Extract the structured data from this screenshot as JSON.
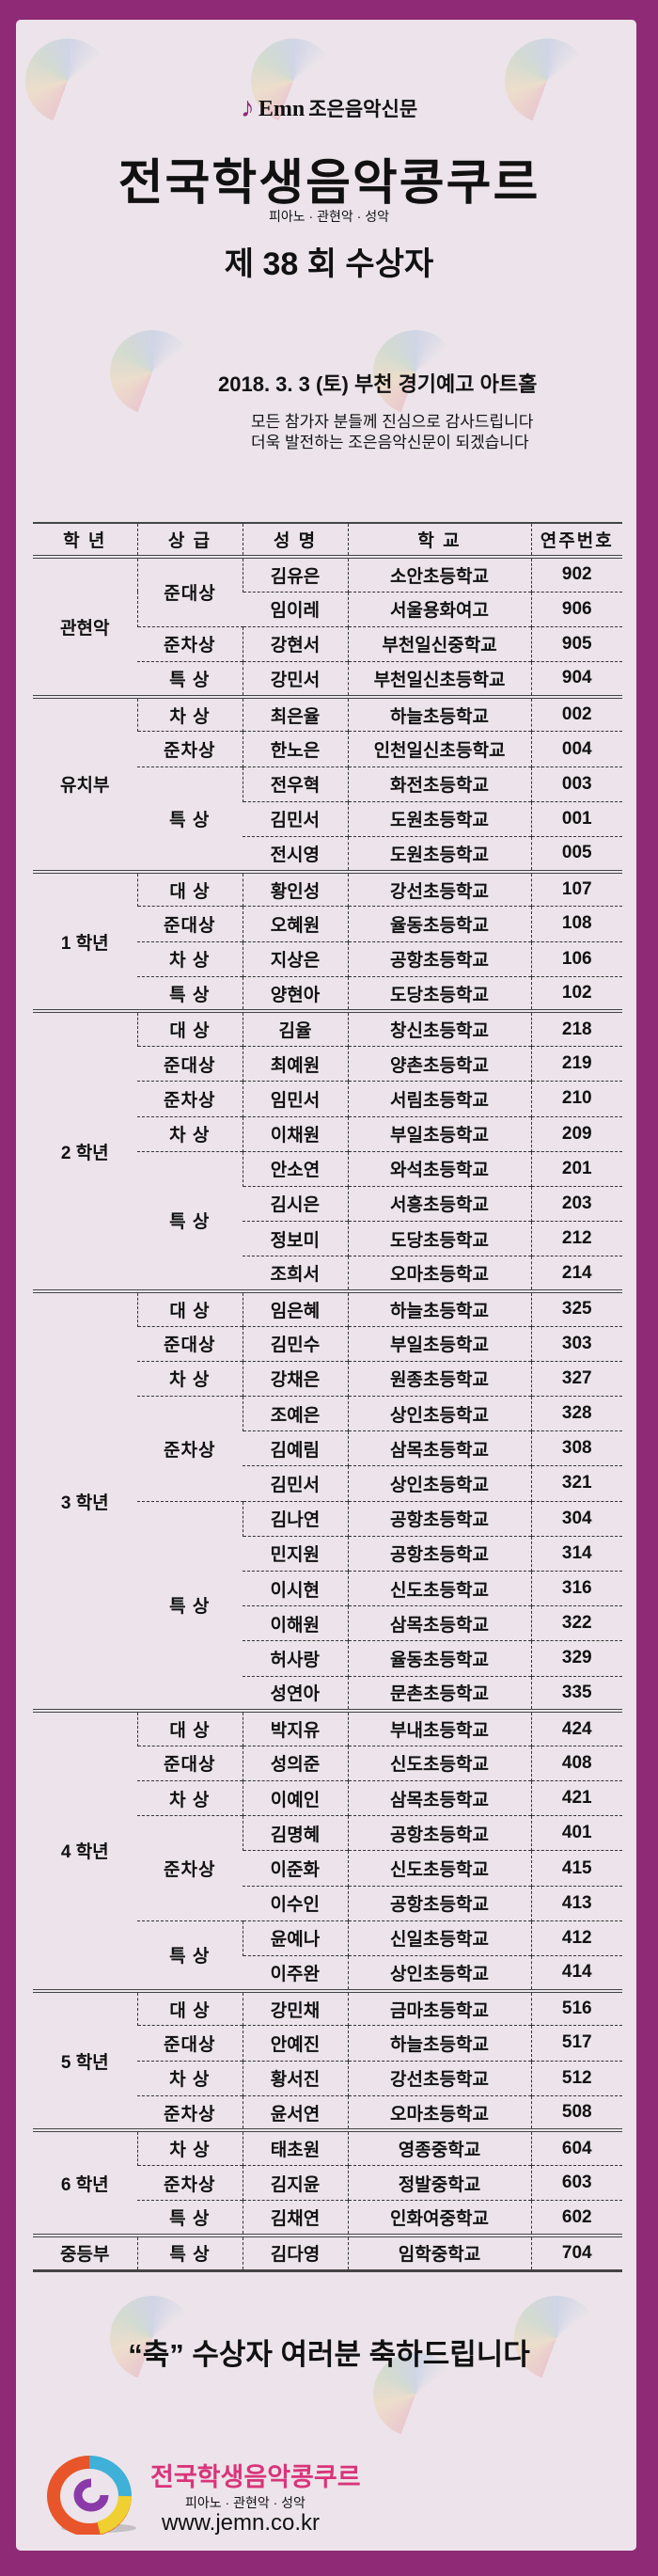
{
  "header": {
    "newspaper_brand": "Emn",
    "newspaper_name": "조은음악신문",
    "title": "전국학생음악콩쿠르",
    "subtitle": "피아노 · 관현악 · 성악",
    "round": "제 38 회  수상자",
    "event": "2018.  3. 3 (토)  부천 경기예고 아트홀",
    "thanks_1": "모든 참가자 분들께 진심으로 감사드립니다",
    "thanks_2": "더욱 발전하는 조은음악신문이 되겠습니다"
  },
  "colors": {
    "border": "#8f2a76",
    "panel": "#ece4ea",
    "footer_title": "#d9347a"
  },
  "table": {
    "columns": [
      "학  년",
      "상  급",
      "성  명",
      "학  교",
      "연주번호"
    ],
    "groups": [
      {
        "grade": "관현악",
        "awards": [
          {
            "award": "준대상",
            "entries": [
              [
                "김유은",
                "소안초등학교",
                "902"
              ],
              [
                "임이레",
                "서울용화여고",
                "906"
              ]
            ]
          },
          {
            "award": "준차상",
            "entries": [
              [
                "강현서",
                "부천일신중학교",
                "905"
              ]
            ]
          },
          {
            "award": "특  상",
            "entries": [
              [
                "강민서",
                "부천일신초등학교",
                "904"
              ]
            ]
          }
        ]
      },
      {
        "grade": "유치부",
        "awards": [
          {
            "award": "차  상",
            "entries": [
              [
                "최은율",
                "하늘초등학교",
                "002"
              ]
            ]
          },
          {
            "award": "준차상",
            "entries": [
              [
                "한노은",
                "인천일신초등학교",
                "004"
              ]
            ]
          },
          {
            "award": "특  상",
            "entries": [
              [
                "전우혁",
                "화전초등학교",
                "003"
              ],
              [
                "김민서",
                "도원초등학교",
                "001"
              ],
              [
                "전시영",
                "도원초등학교",
                "005"
              ]
            ]
          }
        ]
      },
      {
        "grade": "1 학년",
        "awards": [
          {
            "award": "대  상",
            "entries": [
              [
                "황인성",
                "강선초등학교",
                "107"
              ]
            ]
          },
          {
            "award": "준대상",
            "entries": [
              [
                "오혜원",
                "율동초등학교",
                "108"
              ]
            ]
          },
          {
            "award": "차  상",
            "entries": [
              [
                "지상은",
                "공항초등학교",
                "106"
              ]
            ]
          },
          {
            "award": "특  상",
            "entries": [
              [
                "양현아",
                "도당초등학교",
                "102"
              ]
            ]
          }
        ]
      },
      {
        "grade": "2 학년",
        "awards": [
          {
            "award": "대  상",
            "entries": [
              [
                "김율",
                "창신초등학교",
                "218"
              ]
            ]
          },
          {
            "award": "준대상",
            "entries": [
              [
                "최예원",
                "양촌초등학교",
                "219"
              ]
            ]
          },
          {
            "award": "준차상",
            "entries": [
              [
                "임민서",
                "서림초등학교",
                "210"
              ]
            ]
          },
          {
            "award": "차  상",
            "entries": [
              [
                "이채원",
                "부일초등학교",
                "209"
              ]
            ]
          },
          {
            "award": "특  상",
            "entries": [
              [
                "안소연",
                "와석초등학교",
                "201"
              ],
              [
                "김시은",
                "서흥초등학교",
                "203"
              ],
              [
                "정보미",
                "도당초등학교",
                "212"
              ],
              [
                "조희서",
                "오마초등학교",
                "214"
              ]
            ]
          }
        ]
      },
      {
        "grade": "3 학년",
        "awards": [
          {
            "award": "대  상",
            "entries": [
              [
                "임은혜",
                "하늘초등학교",
                "325"
              ]
            ]
          },
          {
            "award": "준대상",
            "entries": [
              [
                "김민수",
                "부일초등학교",
                "303"
              ]
            ]
          },
          {
            "award": "차  상",
            "entries": [
              [
                "강채은",
                "원종초등학교",
                "327"
              ]
            ]
          },
          {
            "award": "준차상",
            "entries": [
              [
                "조예은",
                "상인초등학교",
                "328"
              ],
              [
                "김예림",
                "삼목초등학교",
                "308"
              ],
              [
                "김민서",
                "상인초등학교",
                "321"
              ]
            ]
          },
          {
            "award": "특  상",
            "entries": [
              [
                "김나연",
                "공항초등학교",
                "304"
              ],
              [
                "민지원",
                "공항초등학교",
                "314"
              ],
              [
                "이시현",
                "신도초등학교",
                "316"
              ],
              [
                "이해원",
                "삼목초등학교",
                "322"
              ],
              [
                "허사랑",
                "율동초등학교",
                "329"
              ],
              [
                "성연아",
                "문촌초등학교",
                "335"
              ]
            ]
          }
        ]
      },
      {
        "grade": "4 학년",
        "awards": [
          {
            "award": "대  상",
            "entries": [
              [
                "박지유",
                "부내초등학교",
                "424"
              ]
            ]
          },
          {
            "award": "준대상",
            "entries": [
              [
                "성의준",
                "신도초등학교",
                "408"
              ]
            ]
          },
          {
            "award": "차  상",
            "entries": [
              [
                "이예인",
                "삼목초등학교",
                "421"
              ]
            ]
          },
          {
            "award": "준차상",
            "entries": [
              [
                "김명혜",
                "공항초등학교",
                "401"
              ],
              [
                "이준화",
                "신도초등학교",
                "415"
              ],
              [
                "이수인",
                "공항초등학교",
                "413"
              ]
            ]
          },
          {
            "award": "특  상",
            "entries": [
              [
                "윤예나",
                "신일초등학교",
                "412"
              ],
              [
                "이주완",
                "상인초등학교",
                "414"
              ]
            ]
          }
        ]
      },
      {
        "grade": "5 학년",
        "awards": [
          {
            "award": "대  상",
            "entries": [
              [
                "강민채",
                "금마초등학교",
                "516"
              ]
            ]
          },
          {
            "award": "준대상",
            "entries": [
              [
                "안예진",
                "하늘초등학교",
                "517"
              ]
            ]
          },
          {
            "award": "차  상",
            "entries": [
              [
                "황서진",
                "강선초등학교",
                "512"
              ]
            ]
          },
          {
            "award": "준차상",
            "entries": [
              [
                "윤서연",
                "오마초등학교",
                "508"
              ]
            ]
          }
        ]
      },
      {
        "grade": "6 학년",
        "awards": [
          {
            "award": "차  상",
            "entries": [
              [
                "태초원",
                "영종중학교",
                "604"
              ]
            ]
          },
          {
            "award": "준차상",
            "entries": [
              [
                "김지윤",
                "정발중학교",
                "603"
              ]
            ]
          },
          {
            "award": "특  상",
            "entries": [
              [
                "김채연",
                "인화여중학교",
                "602"
              ]
            ]
          }
        ]
      },
      {
        "grade": "중등부",
        "awards": [
          {
            "award": "특  상",
            "entries": [
              [
                "김다영",
                "임학중학교",
                "704"
              ]
            ]
          }
        ]
      }
    ]
  },
  "congrats": "“축”  수상자 여러분 축하드립니다",
  "footer": {
    "title": "전국학생음악콩쿠르",
    "subtitle": "피아노 · 관현악 · 성악",
    "url": "www.jemn.co.kr",
    "logo_icon": "rainbow-piano-spiral-icon"
  }
}
